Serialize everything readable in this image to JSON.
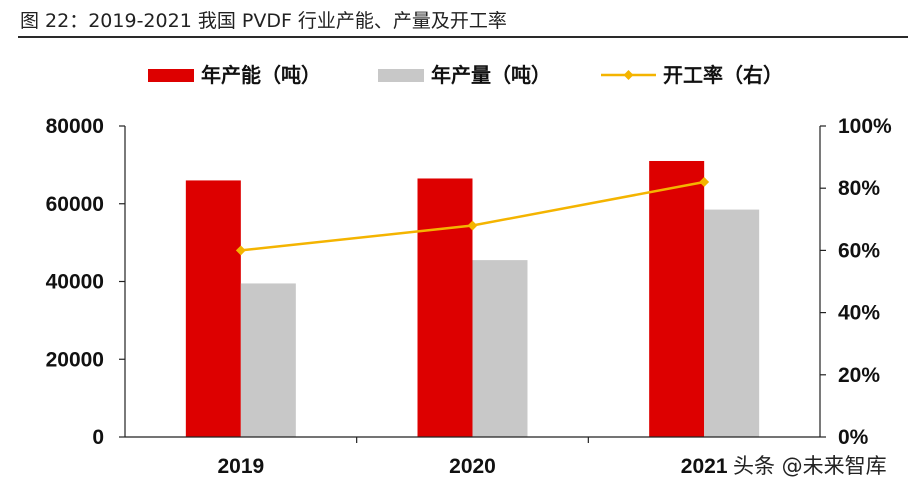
{
  "figure": {
    "title": "图 22：2019-2021 我国 PVDF 行业产能、产量及开工率"
  },
  "watermark": "头条 @未来智库",
  "chart_data": {
    "type": "bar",
    "categories": [
      "2019",
      "2020",
      "2021"
    ],
    "series": [
      {
        "name": "年产能（吨）",
        "kind": "bar",
        "axis": "left",
        "color": "#dd0000",
        "values": [
          66000,
          66500,
          71000
        ]
      },
      {
        "name": "年产量（吨）",
        "kind": "bar",
        "axis": "left",
        "color": "#c8c8c8",
        "values": [
          39500,
          45500,
          58500
        ]
      },
      {
        "name": "开工率（右）",
        "kind": "line",
        "axis": "right",
        "color": "#f4b400",
        "values": [
          0.6,
          0.68,
          0.82
        ]
      }
    ],
    "y_left": {
      "min": 0,
      "max": 80000,
      "ticks": [
        0,
        20000,
        40000,
        60000,
        80000
      ],
      "tick_labels": [
        "0",
        "20000",
        "40000",
        "60000",
        "80000"
      ]
    },
    "y_right": {
      "min": 0,
      "max": 1,
      "ticks": [
        0,
        0.2,
        0.4,
        0.6,
        0.8,
        1.0
      ],
      "tick_labels": [
        "0%",
        "20%",
        "40%",
        "60%",
        "80%",
        "100%"
      ]
    },
    "legend_position": "top",
    "grid": false
  }
}
